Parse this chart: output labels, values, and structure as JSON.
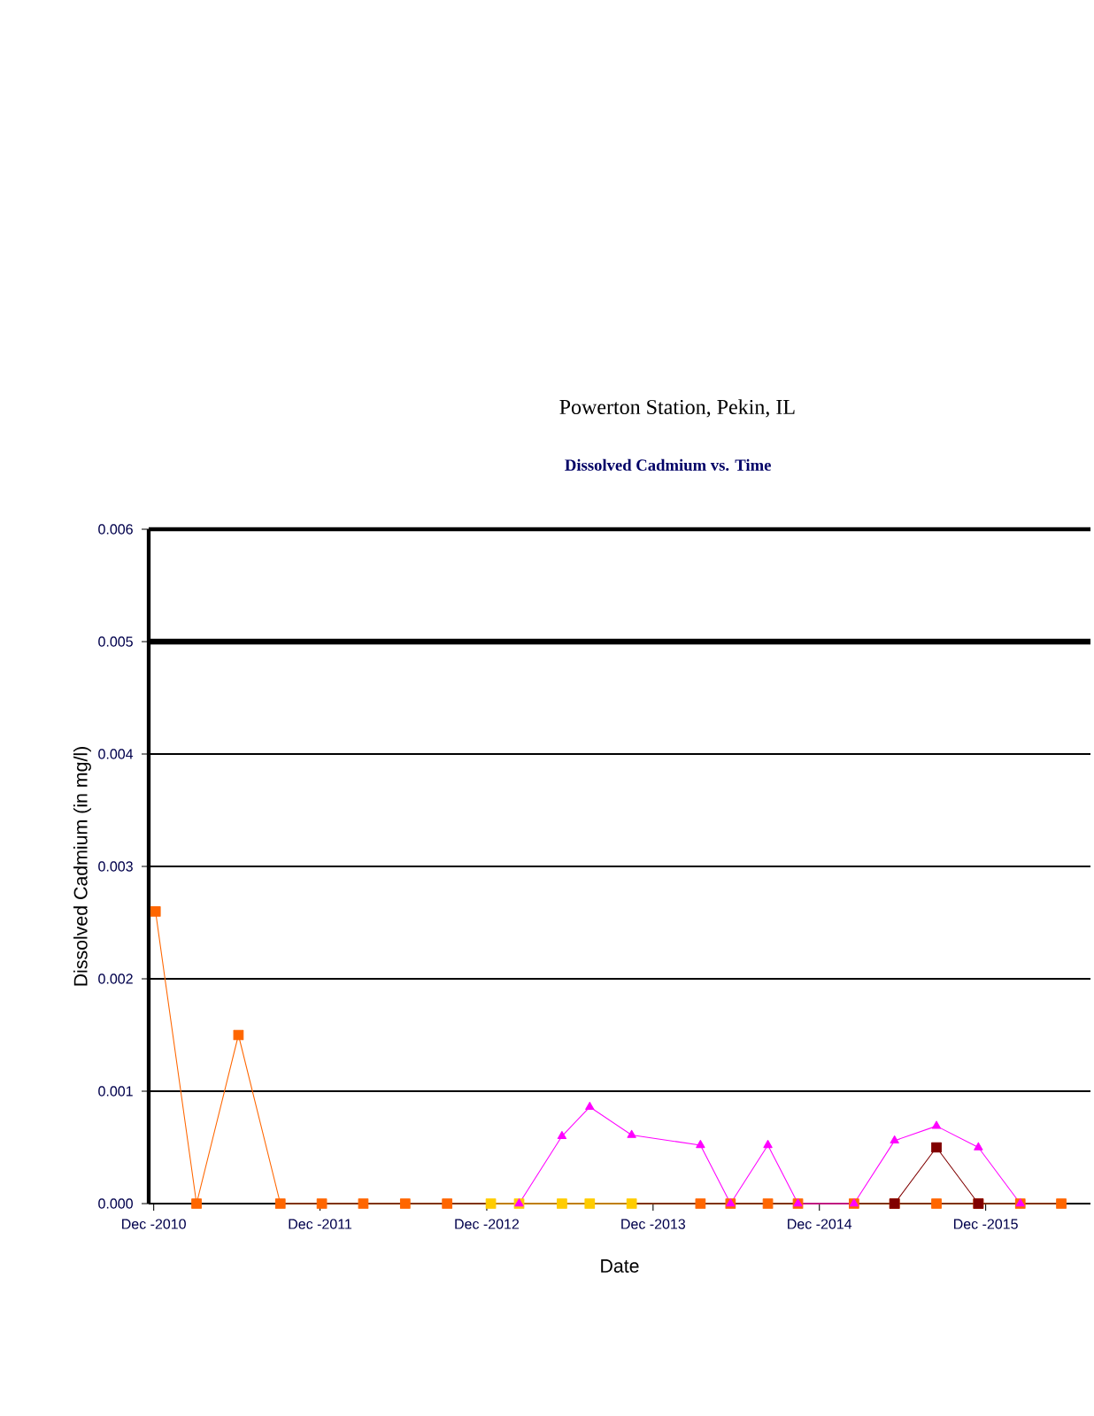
{
  "chart_data": {
    "type": "line",
    "title": "Powerton Station, Pekin, IL",
    "subtitle": "Dissolved Cadmium vs. Time",
    "xlabel": "Date",
    "ylabel": "Dissolved Cadmium (in mg/l)",
    "xlim": [
      "2010-11-20",
      "2016-07-18"
    ],
    "xticks": [
      {
        "value": "2010-12-01",
        "label": "Dec -2010"
      },
      {
        "value": "2011-12-01",
        "label": "Dec -2011"
      },
      {
        "value": "2012-12-01",
        "label": "Dec -2012"
      },
      {
        "value": "2013-12-01",
        "label": "Dec -2013"
      },
      {
        "value": "2014-12-01",
        "label": "Dec -2014"
      },
      {
        "value": "2015-12-01",
        "label": "Dec -2015"
      }
    ],
    "ylim": [
      0,
      0.006
    ],
    "yticks": [
      {
        "value": 0,
        "label": "0.000"
      },
      {
        "value": 0.001,
        "label": "0.001"
      },
      {
        "value": 0.002,
        "label": "0.002"
      },
      {
        "value": 0.003,
        "label": "0.003"
      },
      {
        "value": 0.004,
        "label": "0.004"
      },
      {
        "value": 0.005,
        "label": "0.005"
      },
      {
        "value": 0.006,
        "label": "0.006"
      }
    ],
    "grid": "y",
    "ref_lines": [
      {
        "axis": "y",
        "value": 0.005,
        "color": "#000000"
      }
    ],
    "series": [
      {
        "color": "#ff6600",
        "marker": "square",
        "x": [
          "2010-12-05",
          "2011-03-05",
          "2011-06-05",
          "2011-09-05",
          "2011-12-05",
          "2012-03-05",
          "2012-06-05",
          "2012-09-05",
          "2014-03-15",
          "2014-05-20",
          "2014-08-10",
          "2014-10-15",
          "2015-02-15",
          "2015-05-15",
          "2015-08-15",
          "2015-11-15",
          "2016-02-15",
          "2016-05-15"
        ],
        "values": [
          0.0026,
          0,
          0.0015,
          0,
          0,
          0,
          0,
          0,
          0,
          0,
          0,
          0,
          0,
          0,
          0,
          0,
          0,
          0
        ]
      },
      {
        "color": "#ffcc00",
        "marker": "square",
        "x": [
          "2012-12-10",
          "2013-02-10",
          "2013-05-15",
          "2013-07-15",
          "2013-10-15"
        ],
        "values": [
          0,
          0,
          0,
          0,
          0
        ]
      },
      {
        "color": "#ff00ff",
        "marker": "triangle",
        "x": [
          "2013-02-10",
          "2013-05-15",
          "2013-07-15",
          "2013-10-15",
          "2014-03-15",
          "2014-05-20",
          "2014-08-10",
          "2014-10-15",
          "2015-02-15",
          "2015-05-15",
          "2015-08-15",
          "2015-11-15",
          "2016-02-15"
        ],
        "values": [
          0,
          0.0006,
          0.00086,
          0.00061,
          0.00052,
          0,
          0.00052,
          0,
          0,
          0.00056,
          0.00069,
          0.0005,
          0
        ]
      },
      {
        "color": "#800000",
        "marker": "square",
        "x": [
          "2015-05-15",
          "2015-08-15",
          "2015-11-15"
        ],
        "values": [
          0,
          0.0005,
          0
        ]
      }
    ]
  }
}
